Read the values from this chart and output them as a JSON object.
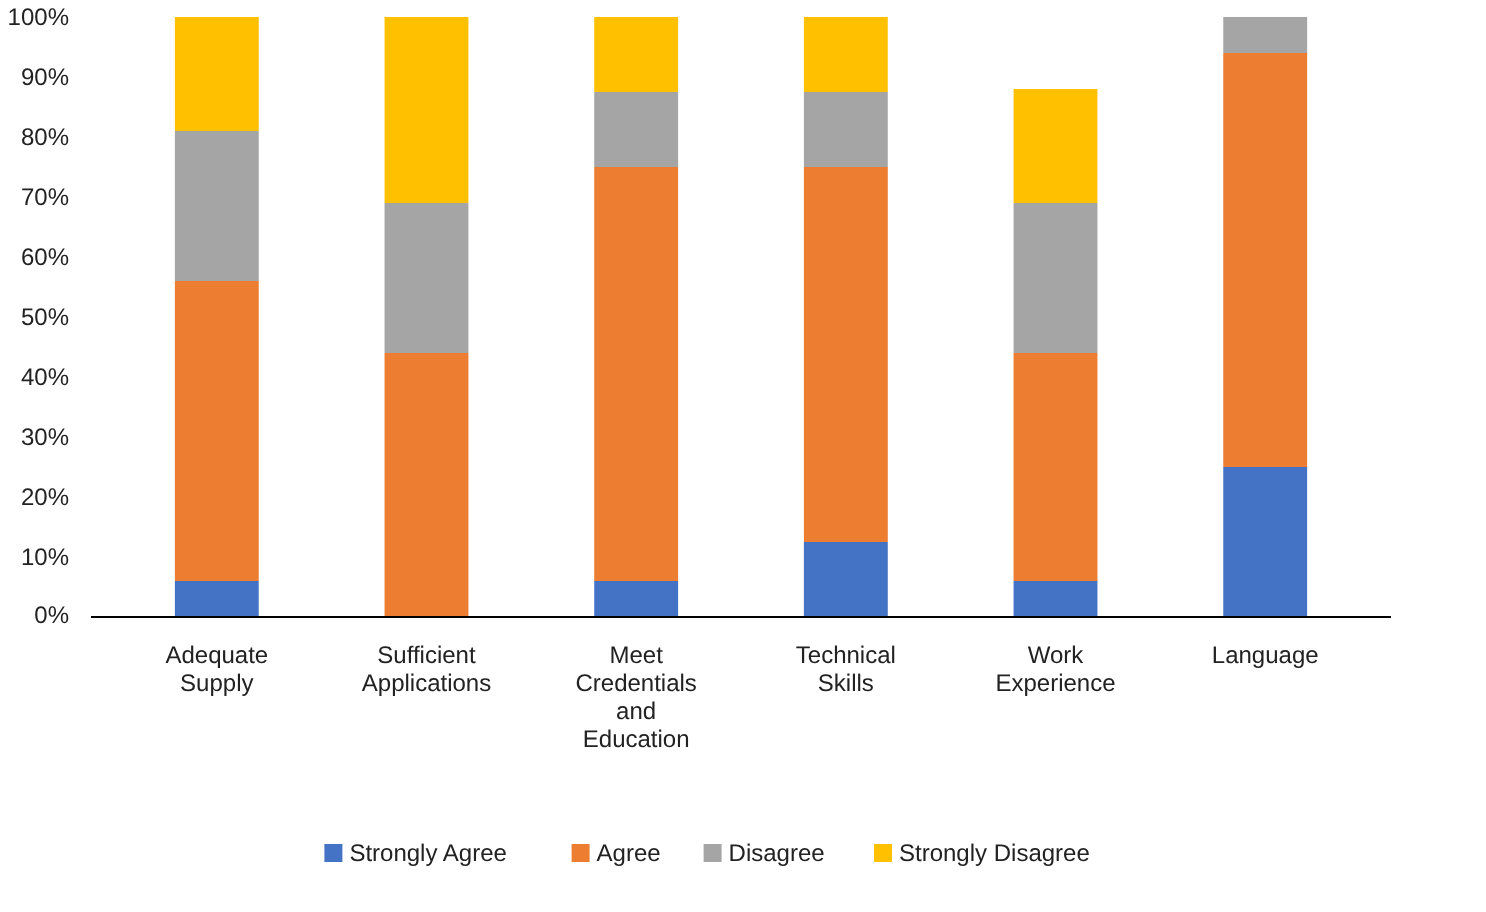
{
  "chart_data": {
    "type": "bar",
    "stacked": true,
    "categories": [
      "Adequate Supply",
      "Sufficient Applications",
      "Meet Credentials and Education",
      "Technical Skills",
      "Work Experience",
      "Language"
    ],
    "series": [
      {
        "name": "Strongly Agree",
        "color": "#4472c4",
        "values": [
          6,
          0,
          6,
          12.5,
          6,
          25
        ]
      },
      {
        "name": "Agree",
        "color": "#ed7d31",
        "values": [
          50,
          44,
          69,
          62.5,
          38,
          69
        ]
      },
      {
        "name": "Disagree",
        "color": "#a5a5a5",
        "values": [
          25,
          25,
          12.5,
          12.5,
          25,
          6
        ]
      },
      {
        "name": "Strongly Disagree",
        "color": "#ffc000",
        "values": [
          19,
          31,
          12.5,
          12.5,
          19,
          0
        ]
      }
    ],
    "ylim": [
      0,
      100
    ],
    "yticks": [
      {
        "value": 0,
        "label": "0%"
      },
      {
        "value": 10,
        "label": "10%"
      },
      {
        "value": 20,
        "label": "20%"
      },
      {
        "value": 30,
        "label": "30%"
      },
      {
        "value": 40,
        "label": "40%"
      },
      {
        "value": 50,
        "label": "50%"
      },
      {
        "value": 60,
        "label": "60%"
      },
      {
        "value": 70,
        "label": "70%"
      },
      {
        "value": 80,
        "label": "80%"
      },
      {
        "value": 90,
        "label": "90%"
      },
      {
        "value": 100,
        "label": "100%"
      }
    ],
    "grid": false,
    "legend": "bottom"
  }
}
